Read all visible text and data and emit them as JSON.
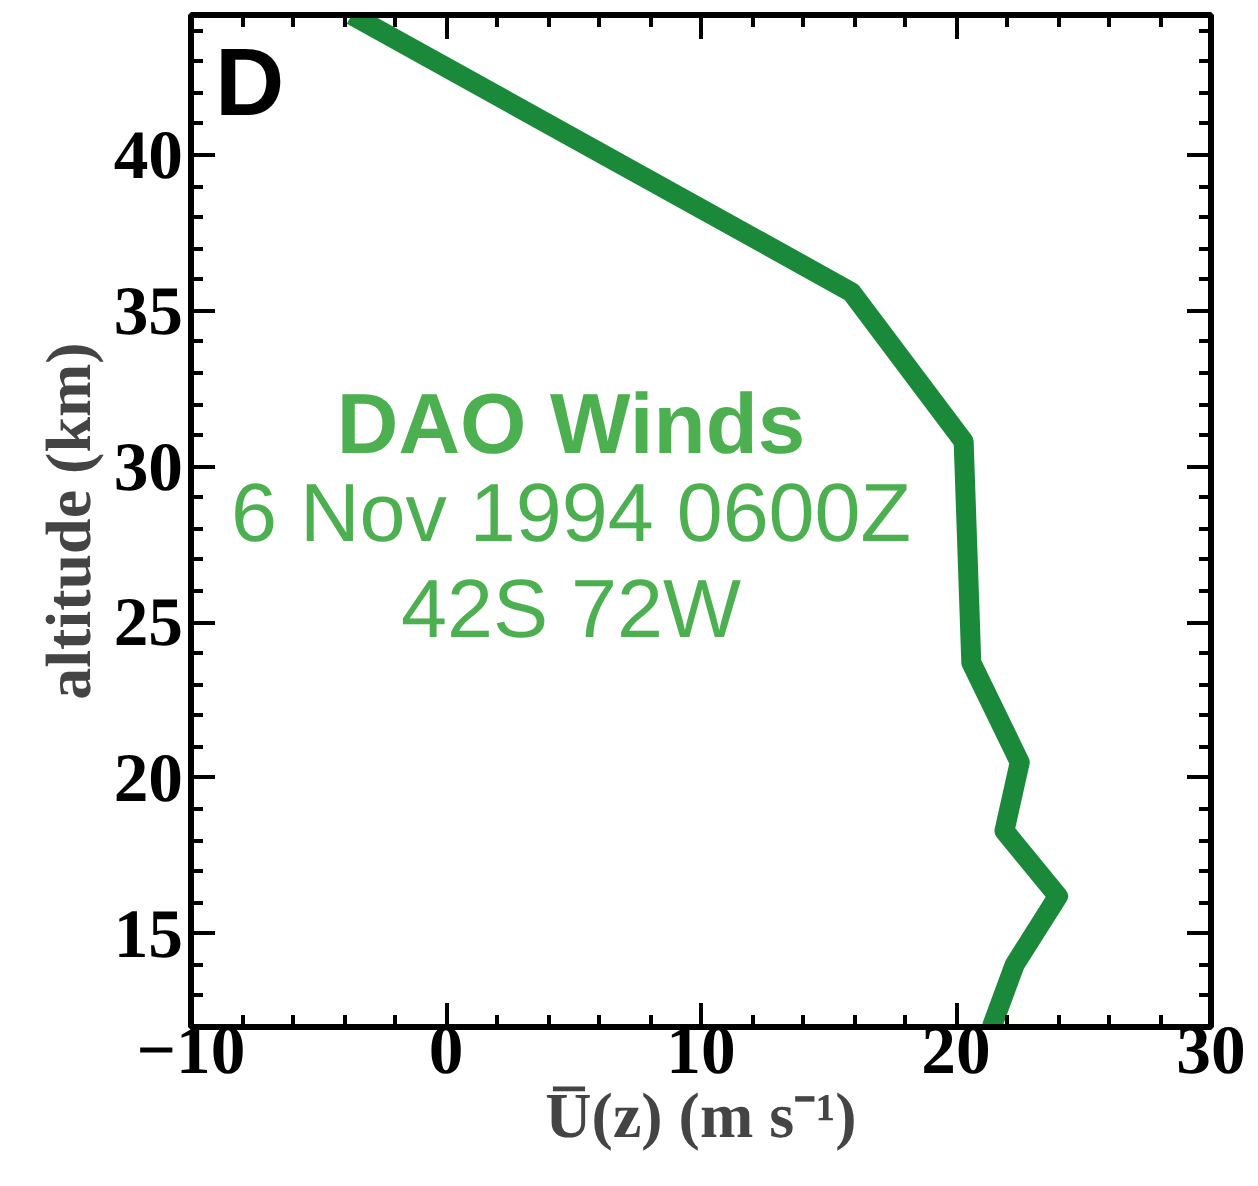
{
  "chart_data": {
    "type": "line",
    "xlabel": "U̅(z) (m s⁻¹)",
    "ylabel": "altitude (km)",
    "annotations": [
      "D",
      "DAO Winds",
      "6 Nov 1994 0600Z",
      "42S 72W"
    ],
    "x": [
      -3.7,
      15.9,
      20.3,
      20.6,
      22.5,
      21.9,
      24.0,
      22.3,
      21.4
    ],
    "series": [
      {
        "color": "#1a8a3a",
        "values": [
          44.5,
          35.6,
          30.8,
          23.7,
          20.5,
          18.3,
          16.2,
          14.0,
          12.0
        ]
      }
    ],
    "xlim": [
      -10,
      30
    ],
    "ylim": [
      12,
      44.5
    ],
    "xticks": [
      -10,
      0,
      10,
      20,
      30
    ],
    "yticks": [
      15,
      20,
      25,
      30,
      35,
      40
    ],
    "grid": false,
    "marker": "none",
    "line_style": "solid"
  }
}
